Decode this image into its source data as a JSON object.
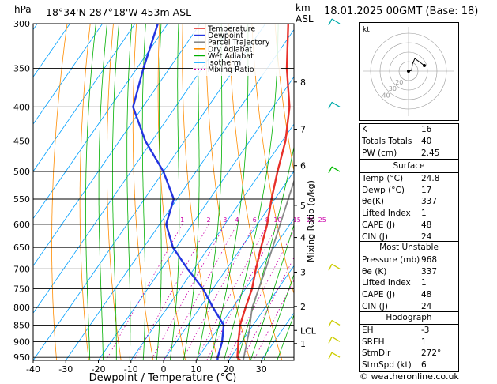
{
  "header": {
    "hpa_label": "hPa",
    "location": "18°34'N  287°18'W  453m  ASL",
    "km_label": "km",
    "asl_label": "ASL",
    "datetime": "18.01.2025  00GMT  (Base: 18)"
  },
  "chart_data": {
    "type": "line",
    "title": "",
    "xlabel": "Dewpoint / Temperature (°C)",
    "ylabel": "hPa",
    "xlim": [
      -40,
      40
    ],
    "ylim": [
      960,
      300
    ],
    "y_scale": "log",
    "pressure_levels": [
      300,
      350,
      400,
      450,
      500,
      550,
      600,
      650,
      700,
      750,
      800,
      850,
      900,
      950
    ],
    "x_ticks": [
      -40,
      -30,
      -20,
      -10,
      0,
      10,
      20,
      30
    ],
    "height_axis_label": "km",
    "height_ticks": [
      {
        "km": "8",
        "p": 367
      },
      {
        "km": "7",
        "p": 432
      },
      {
        "km": "6",
        "p": 490
      },
      {
        "km": "5",
        "p": 562
      },
      {
        "km": "4",
        "p": 628
      },
      {
        "km": "3",
        "p": 708
      },
      {
        "km": "2",
        "p": 797
      },
      {
        "km": "LCL",
        "p": 866
      },
      {
        "km": "1",
        "p": 906
      }
    ],
    "mixing_ratio_label": "Mixing Ratio (g/kg)",
    "mixing_ratio_labels": [
      "1",
      "2",
      "3",
      "4",
      "6",
      "8",
      "10",
      "15",
      "20",
      "25"
    ],
    "mixing_ratio_values": [
      1,
      2,
      3,
      4,
      6,
      8,
      10,
      15,
      20,
      25
    ],
    "legend": {
      "placement": "top-left",
      "entries": [
        {
          "name": "Temperature",
          "color": "#e8302a",
          "dash": false
        },
        {
          "name": "Dewpoint",
          "color": "#2434e0",
          "dash": false
        },
        {
          "name": "Parcel Trajectory",
          "color": "#888888",
          "dash": false
        },
        {
          "name": "Dry Adiabat",
          "color": "#ff8c00",
          "dash": false
        },
        {
          "name": "Wet Adiabat",
          "color": "#00b000",
          "dash": false
        },
        {
          "name": "Isotherm",
          "color": "#00a0ff",
          "dash": false
        },
        {
          "name": "Mixing Ratio",
          "color": "#cc00aa",
          "dash": true
        }
      ]
    },
    "series": [
      {
        "name": "Temperature",
        "color": "#e8302a",
        "points": [
          [
            24.8,
            968
          ],
          [
            22,
            950
          ],
          [
            19,
            900
          ],
          [
            16,
            850
          ],
          [
            14,
            800
          ],
          [
            12,
            750
          ],
          [
            9,
            700
          ],
          [
            6,
            650
          ],
          [
            3,
            600
          ],
          [
            -1,
            550
          ],
          [
            -5,
            500
          ],
          [
            -9,
            450
          ],
          [
            -15,
            400
          ],
          [
            -24,
            350
          ],
          [
            -33,
            300
          ]
        ]
      },
      {
        "name": "Dewpoint",
        "color": "#2434e0",
        "points": [
          [
            17,
            968
          ],
          [
            16,
            950
          ],
          [
            14,
            900
          ],
          [
            11,
            850
          ],
          [
            4,
            800
          ],
          [
            -3,
            750
          ],
          [
            -12,
            700
          ],
          [
            -21,
            650
          ],
          [
            -28,
            600
          ],
          [
            -31,
            550
          ],
          [
            -40,
            500
          ],
          [
            -52,
            450
          ],
          [
            -63,
            400
          ],
          [
            -68,
            350
          ],
          [
            -73,
            300
          ]
        ]
      },
      {
        "name": "Parcel Trajectory",
        "color": "#888888",
        "points": [
          [
            24.8,
            968
          ],
          [
            20,
            866
          ],
          [
            16,
            800
          ],
          [
            12,
            700
          ],
          [
            7,
            600
          ],
          [
            1,
            500
          ],
          [
            -8,
            400
          ],
          [
            -14,
            350
          ],
          [
            -21,
            300
          ]
        ]
      }
    ],
    "wind_barbs": [
      {
        "p": 300,
        "color": "#00aaaa"
      },
      {
        "p": 400,
        "color": "#00aaaa"
      },
      {
        "p": 500,
        "color": "#00bb00"
      },
      {
        "p": 700,
        "color": "#cccc00"
      },
      {
        "p": 850,
        "color": "#cccc00"
      },
      {
        "p": 900,
        "color": "#cccc00"
      },
      {
        "p": 950,
        "color": "#cccc00"
      }
    ]
  },
  "hodograph": {
    "label": "kt",
    "ring_labels": [
      "10",
      "20",
      "30",
      "40"
    ]
  },
  "indices": {
    "k": {
      "label": "K",
      "value": "16"
    },
    "tt": {
      "label": "Totals Totals",
      "value": "40"
    },
    "pw": {
      "label": "PW (cm)",
      "value": "2.45"
    }
  },
  "surface": {
    "title": "Surface",
    "temp": {
      "label": "Temp (°C)",
      "value": "24.8"
    },
    "dewp": {
      "label": "Dewp (°C)",
      "value": "17"
    },
    "theta_e": {
      "label": "θe(K)",
      "value": "337"
    },
    "li": {
      "label": "Lifted Index",
      "value": "1"
    },
    "cape": {
      "label": "CAPE (J)",
      "value": "48"
    },
    "cin": {
      "label": "CIN (J)",
      "value": "24"
    }
  },
  "most_unstable": {
    "title": "Most Unstable",
    "pressure": {
      "label": "Pressure (mb)",
      "value": "968"
    },
    "theta_e": {
      "label": "θe (K)",
      "value": "337"
    },
    "li": {
      "label": "Lifted Index",
      "value": "1"
    },
    "cape": {
      "label": "CAPE (J)",
      "value": "48"
    },
    "cin": {
      "label": "CIN (J)",
      "value": "24"
    }
  },
  "hodo_table": {
    "title": "Hodograph",
    "eh": {
      "label": "EH",
      "value": "-3"
    },
    "sreh": {
      "label": "SREH",
      "value": "1"
    },
    "stmdir": {
      "label": "StmDir",
      "value": "272°"
    },
    "stmspd": {
      "label": "StmSpd (kt)",
      "value": "6"
    }
  },
  "footer": {
    "copyright": "© weatheronline.co.uk"
  }
}
